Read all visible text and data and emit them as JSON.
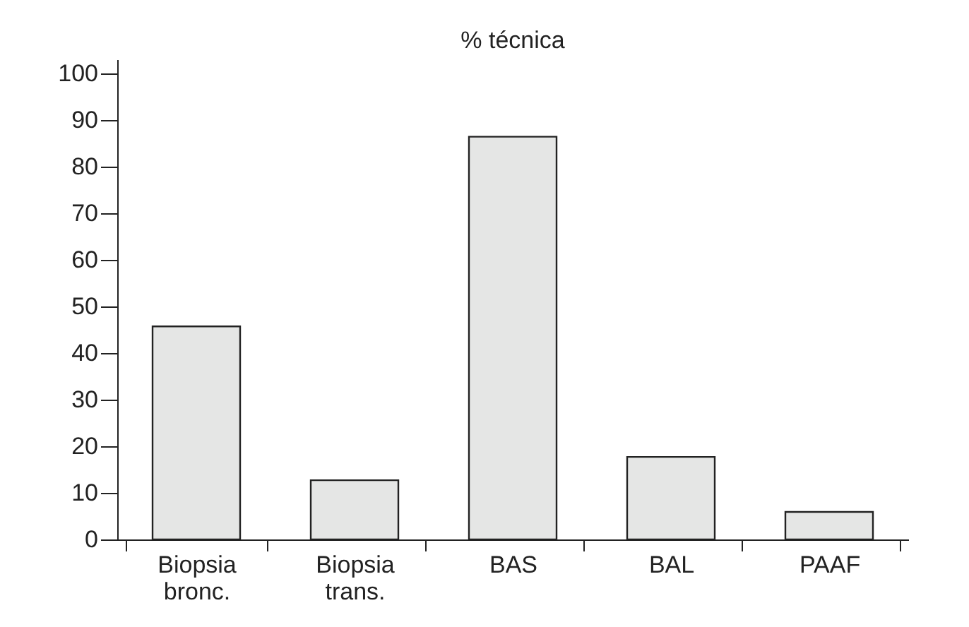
{
  "chart_data": {
    "type": "bar",
    "title": "% técnica",
    "categories": [
      "Biopsia bronc.",
      "Biopsia trans.",
      "BAS",
      "BAL",
      "PAAF"
    ],
    "values": [
      45.7,
      12.7,
      86.4,
      17.7,
      5.9
    ],
    "color": "#e5e6e5",
    "ylim": [
      0,
      103
    ],
    "yticks": [
      0,
      10,
      20,
      30,
      40,
      50,
      60,
      70,
      80,
      90,
      100
    ],
    "grid": false
  }
}
